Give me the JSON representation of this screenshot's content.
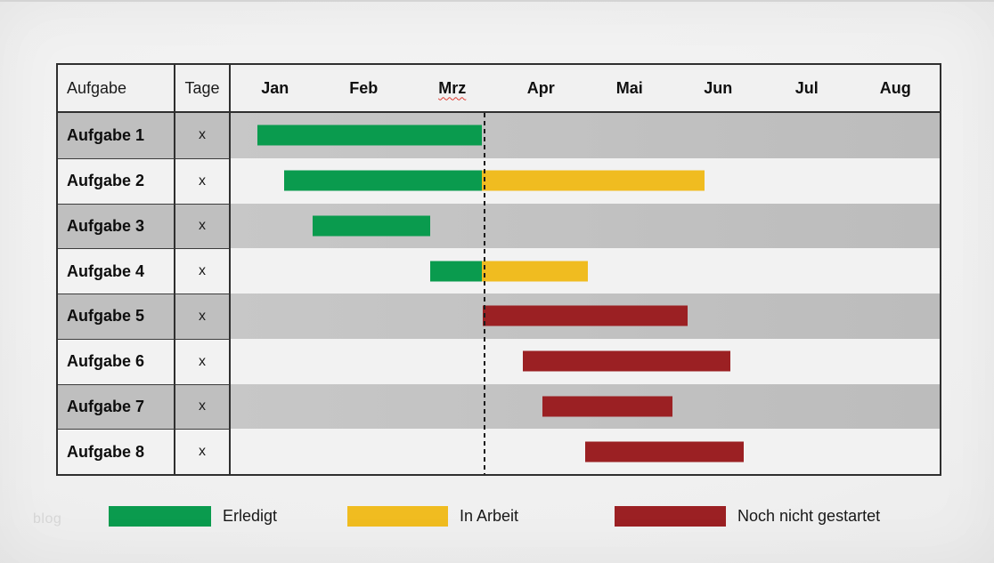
{
  "watermark": "blog",
  "table": {
    "header": {
      "task": "Aufgabe",
      "days": "Tage"
    },
    "months": [
      "Jan",
      "Feb",
      "Mrz",
      "Apr",
      "Mai",
      "Jun",
      "Jul",
      "Aug"
    ],
    "spellchecked_month": "Mrz",
    "rows": [
      {
        "label": "Aufgabe 1",
        "days": "x"
      },
      {
        "label": "Aufgabe 2",
        "days": "x"
      },
      {
        "label": "Aufgabe 3",
        "days": "x"
      },
      {
        "label": "Aufgabe 4",
        "days": "x"
      },
      {
        "label": "Aufgabe 5",
        "days": "x"
      },
      {
        "label": "Aufgabe 6",
        "days": "x"
      },
      {
        "label": "Aufgabe 7",
        "days": "x"
      },
      {
        "label": "Aufgabe 8",
        "days": "x"
      }
    ]
  },
  "legend": {
    "items": [
      {
        "label": "Erledigt",
        "color": "#0a9b4e"
      },
      {
        "label": "In Arbeit",
        "color": "#f0bc20"
      },
      {
        "label": "Noch nicht gestartet",
        "color": "#9b2023"
      }
    ]
  },
  "colors": {
    "row_gray": "#c2c2c2",
    "row_light": "#f2f2f2",
    "table_border": "#2f2f2f",
    "spellcheck_underline": "#e03c31",
    "reference_line": "#1c1c1c"
  },
  "chart_data": {
    "type": "bar",
    "subtype": "gantt",
    "title": "",
    "categories": [
      "Aufgabe 1",
      "Aufgabe 2",
      "Aufgabe 3",
      "Aufgabe 4",
      "Aufgabe 5",
      "Aufgabe 6",
      "Aufgabe 7",
      "Aufgabe 8"
    ],
    "x_axis_labels": [
      "Jan",
      "Feb",
      "Mrz",
      "Apr",
      "Mai",
      "Jun",
      "Jul",
      "Aug"
    ],
    "x_range_months": [
      0,
      8
    ],
    "grid": false,
    "legend_position": "bottom",
    "reference_line_month": 2.83,
    "bars": [
      {
        "task": "Aufgabe 1",
        "segments": [
          {
            "status": "Erledigt",
            "start": 0.3,
            "end": 2.83
          }
        ]
      },
      {
        "task": "Aufgabe 2",
        "segments": [
          {
            "status": "Erledigt",
            "start": 0.6,
            "end": 2.83
          },
          {
            "status": "In Arbeit",
            "start": 2.83,
            "end": 5.35
          }
        ]
      },
      {
        "task": "Aufgabe 3",
        "segments": [
          {
            "status": "Erledigt",
            "start": 0.92,
            "end": 2.25
          }
        ]
      },
      {
        "task": "Aufgabe 4",
        "segments": [
          {
            "status": "Erledigt",
            "start": 2.25,
            "end": 2.83
          },
          {
            "status": "In Arbeit",
            "start": 2.83,
            "end": 4.03
          }
        ]
      },
      {
        "task": "Aufgabe 5",
        "segments": [
          {
            "status": "Noch nicht gestartet",
            "start": 2.84,
            "end": 5.16
          }
        ]
      },
      {
        "task": "Aufgabe 6",
        "segments": [
          {
            "status": "Noch nicht gestartet",
            "start": 3.3,
            "end": 5.64
          }
        ]
      },
      {
        "task": "Aufgabe 7",
        "segments": [
          {
            "status": "Noch nicht gestartet",
            "start": 3.52,
            "end": 4.99
          }
        ]
      },
      {
        "task": "Aufgabe 8",
        "segments": [
          {
            "status": "Noch nicht gestartet",
            "start": 4.0,
            "end": 5.79
          }
        ]
      }
    ]
  }
}
